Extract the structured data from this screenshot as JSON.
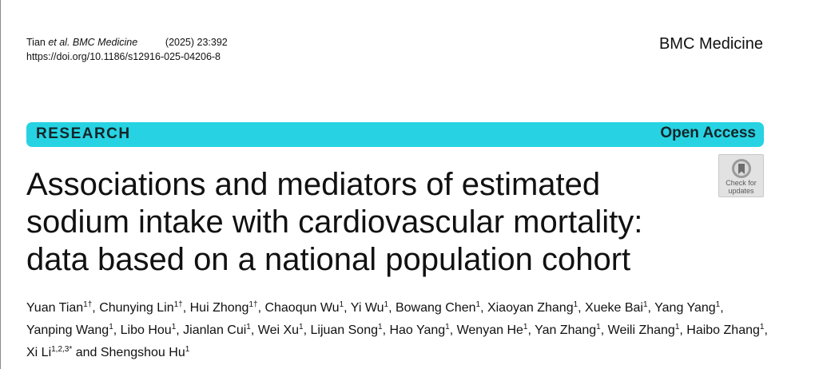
{
  "header": {
    "citation_author": "Tian ",
    "citation_etal_journal": "et al. BMC Medicine",
    "citation_volume": "          (2025) 23:392",
    "doi_url": "https://doi.org/10.1186/s12916-025-04206-8",
    "journal_name": "BMC Medicine"
  },
  "banner": {
    "article_type": "RESEARCH",
    "access": "Open Access",
    "color": "#27d3e2"
  },
  "check_for_updates": {
    "line1": "Check for",
    "line2": "updates",
    "icon": "bookmark-ribbon-icon"
  },
  "article": {
    "title_lines": [
      "Associations and mediators of estimated",
      "sodium intake with cardiovascular mortality:",
      "data based on a national population cohort"
    ],
    "authors": [
      {
        "name": "Yuan Tian",
        "aff": "1†",
        "sep": ", "
      },
      {
        "name": "Chunying Lin",
        "aff": "1†",
        "sep": ", "
      },
      {
        "name": "Hui Zhong",
        "aff": "1†",
        "sep": ", "
      },
      {
        "name": "Chaoqun Wu",
        "aff": "1",
        "sep": ", "
      },
      {
        "name": "Yi Wu",
        "aff": "1",
        "sep": ", "
      },
      {
        "name": "Bowang Chen",
        "aff": "1",
        "sep": ", "
      },
      {
        "name": "Xiaoyan Zhang",
        "aff": "1",
        "sep": ", "
      },
      {
        "name": "Xueke Bai",
        "aff": "1",
        "sep": ", "
      },
      {
        "name": "Yang Yang",
        "aff": "1",
        "sep": ", "
      },
      {
        "name": "Yanping Wang",
        "aff": "1",
        "sep": ", "
      },
      {
        "name": "Libo Hou",
        "aff": "1",
        "sep": ", "
      },
      {
        "name": "Jianlan Cui",
        "aff": "1",
        "sep": ", "
      },
      {
        "name": "Wei Xu",
        "aff": "1",
        "sep": ", "
      },
      {
        "name": "Lijuan Song",
        "aff": "1",
        "sep": ", "
      },
      {
        "name": "Hao Yang",
        "aff": "1",
        "sep": ", "
      },
      {
        "name": "Wenyan He",
        "aff": "1",
        "sep": ", "
      },
      {
        "name": "Yan Zhang",
        "aff": "1",
        "sep": ", "
      },
      {
        "name": "Weili Zhang",
        "aff": "1",
        "sep": ", "
      },
      {
        "name": "Haibo Zhang",
        "aff": "1",
        "sep": ", "
      },
      {
        "name": "Xi Li",
        "aff": "1,2,3*",
        "sep": " and "
      },
      {
        "name": "Shengshou Hu",
        "aff": "1",
        "sep": ""
      }
    ]
  }
}
